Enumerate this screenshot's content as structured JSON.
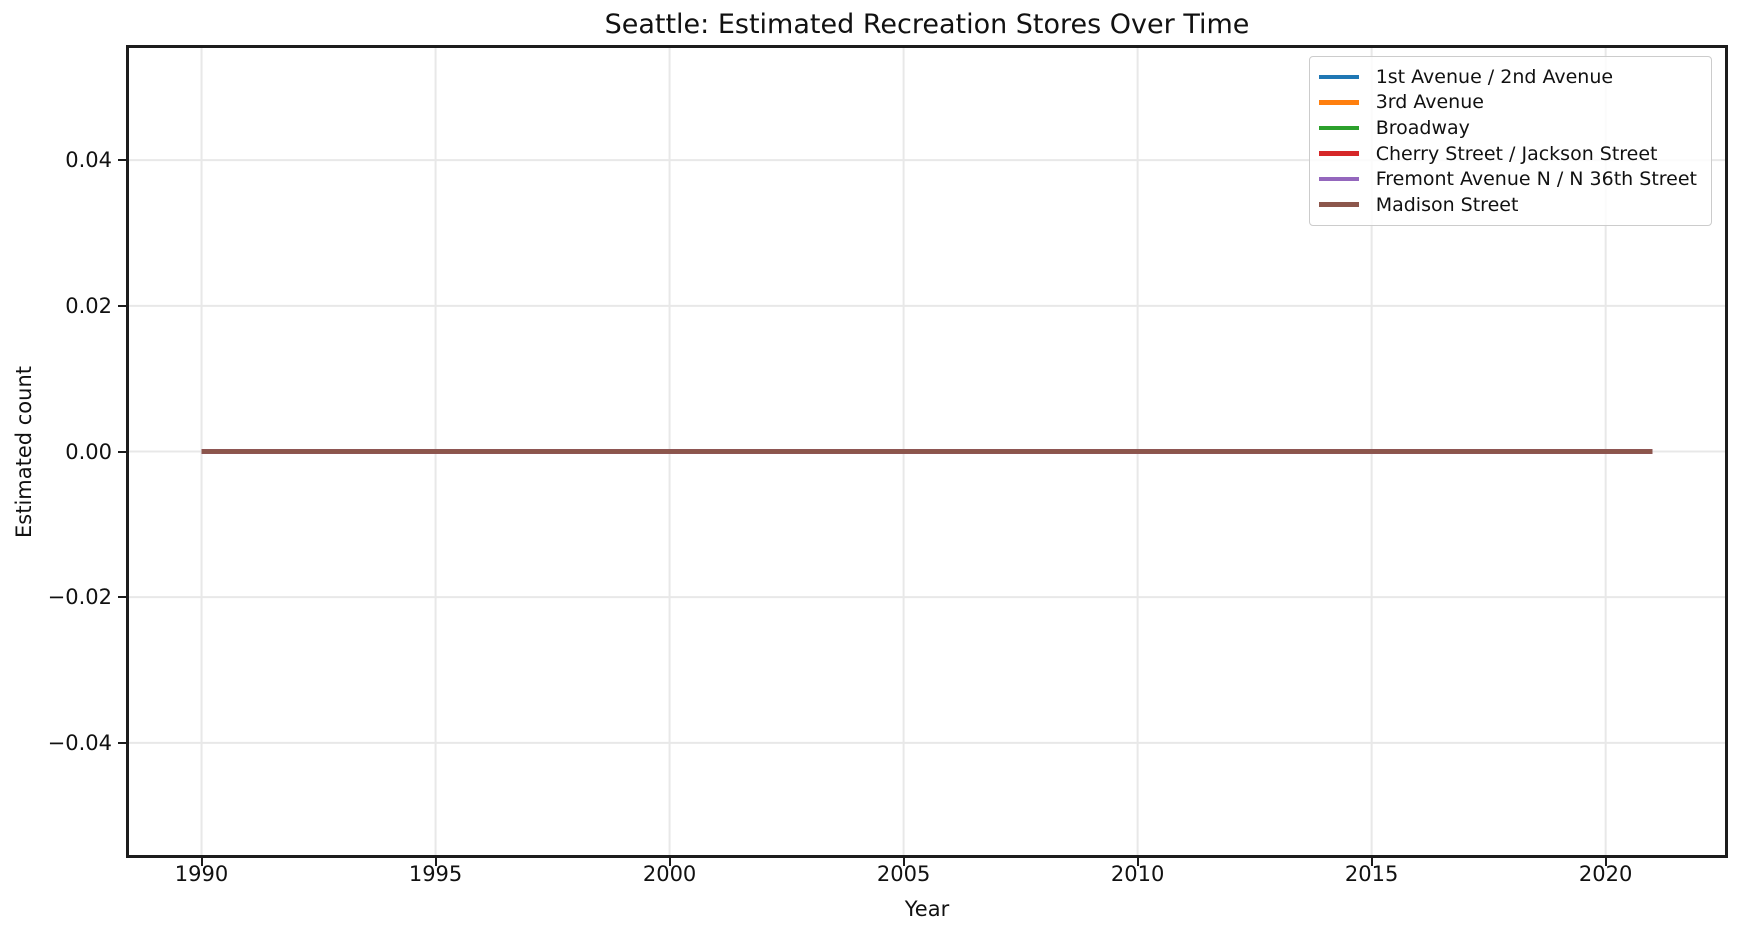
{
  "chart_data": {
    "type": "line",
    "title": "Seattle: Estimated Recreation Stores Over Time",
    "xlabel": "Year",
    "ylabel": "Estimated count",
    "x": [
      1990,
      1991,
      1992,
      1993,
      1994,
      1995,
      1996,
      1997,
      1998,
      1999,
      2000,
      2001,
      2002,
      2003,
      2004,
      2005,
      2006,
      2007,
      2008,
      2009,
      2010,
      2011,
      2012,
      2013,
      2014,
      2015,
      2016,
      2017,
      2018,
      2019,
      2020,
      2021
    ],
    "series": [
      {
        "name": "1st Avenue / 2nd Avenue",
        "color": "#1f77b4",
        "values": [
          0,
          0,
          0,
          0,
          0,
          0,
          0,
          0,
          0,
          0,
          0,
          0,
          0,
          0,
          0,
          0,
          0,
          0,
          0,
          0,
          0,
          0,
          0,
          0,
          0,
          0,
          0,
          0,
          0,
          0,
          0,
          0
        ]
      },
      {
        "name": "3rd Avenue",
        "color": "#ff7f0e",
        "values": [
          0,
          0,
          0,
          0,
          0,
          0,
          0,
          0,
          0,
          0,
          0,
          0,
          0,
          0,
          0,
          0,
          0,
          0,
          0,
          0,
          0,
          0,
          0,
          0,
          0,
          0,
          0,
          0,
          0,
          0,
          0,
          0
        ]
      },
      {
        "name": "Broadway",
        "color": "#2ca02c",
        "values": [
          0,
          0,
          0,
          0,
          0,
          0,
          0,
          0,
          0,
          0,
          0,
          0,
          0,
          0,
          0,
          0,
          0,
          0,
          0,
          0,
          0,
          0,
          0,
          0,
          0,
          0,
          0,
          0,
          0,
          0,
          0,
          0
        ]
      },
      {
        "name": "Cherry Street / Jackson Street",
        "color": "#d62728",
        "values": [
          0,
          0,
          0,
          0,
          0,
          0,
          0,
          0,
          0,
          0,
          0,
          0,
          0,
          0,
          0,
          0,
          0,
          0,
          0,
          0,
          0,
          0,
          0,
          0,
          0,
          0,
          0,
          0,
          0,
          0,
          0,
          0
        ]
      },
      {
        "name": "Fremont Avenue N / N 36th Street",
        "color": "#9467bd",
        "values": [
          0,
          0,
          0,
          0,
          0,
          0,
          0,
          0,
          0,
          0,
          0,
          0,
          0,
          0,
          0,
          0,
          0,
          0,
          0,
          0,
          0,
          0,
          0,
          0,
          0,
          0,
          0,
          0,
          0,
          0,
          0,
          0
        ]
      },
      {
        "name": "Madison Street",
        "color": "#8c564b",
        "values": [
          0,
          0,
          0,
          0,
          0,
          0,
          0,
          0,
          0,
          0,
          0,
          0,
          0,
          0,
          0,
          0,
          0,
          0,
          0,
          0,
          0,
          0,
          0,
          0,
          0,
          0,
          0,
          0,
          0,
          0,
          0,
          0
        ]
      }
    ],
    "xticks": {
      "values": [
        1990,
        1995,
        2000,
        2005,
        2010,
        2015,
        2020
      ],
      "labels": [
        "1990",
        "1995",
        "2000",
        "2005",
        "2010",
        "2015",
        "2020"
      ]
    },
    "yticks": {
      "values": [
        0.04,
        0.02,
        0.0,
        -0.02,
        -0.04
      ],
      "labels": [
        "0.04",
        "0.02",
        "0.00",
        "−0.02",
        "−0.04"
      ]
    },
    "xlim": [
      1988.45,
      2022.55
    ],
    "ylim": [
      -0.0554,
      0.0554
    ],
    "grid": true,
    "legend_position": "upper right",
    "colors": {
      "spine": "#1c1c1c",
      "grid": "#e8e8e8",
      "text": "#111111",
      "legend_border": "#cccccc"
    }
  }
}
